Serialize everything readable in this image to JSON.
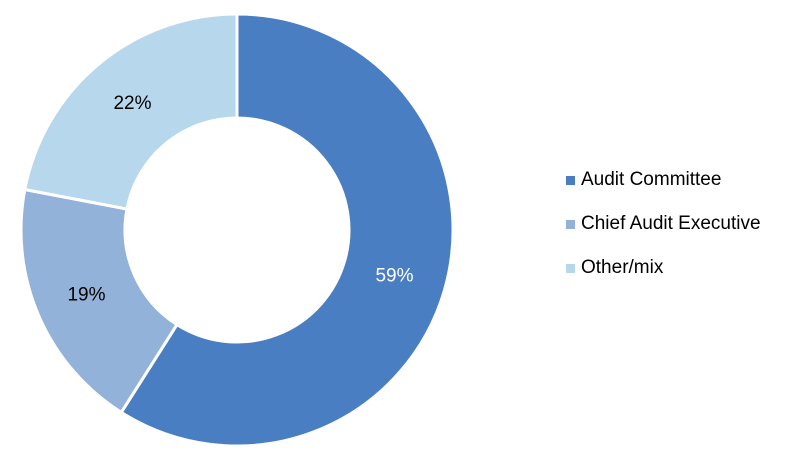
{
  "chart_data": {
    "type": "pie",
    "donut": true,
    "title": "",
    "categories": [
      "Audit Committee",
      "Chief Audit Executive",
      "Other/mix"
    ],
    "values": [
      59,
      19,
      22
    ],
    "labels": [
      "59%",
      "19%",
      "22%"
    ],
    "colors": [
      "#4a7ec2",
      "#92b2d9",
      "#b6d7ec"
    ],
    "label_colors": [
      "#ffffff",
      "#000000",
      "#000000"
    ],
    "legend": "right"
  }
}
